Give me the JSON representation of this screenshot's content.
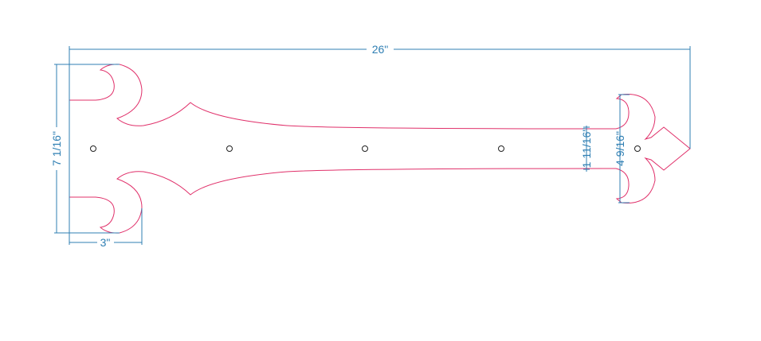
{
  "dimensions": {
    "overall_length": "26\"",
    "overall_height": "7 1/16\"",
    "left_lobe_width": "3\"",
    "strap_width": "1 11/16\"",
    "right_end_height": "4 9/16\""
  },
  "colors": {
    "outline": "#e0306a",
    "dimension": "#2f7fb3",
    "hole": "#222222"
  },
  "holes": 5
}
